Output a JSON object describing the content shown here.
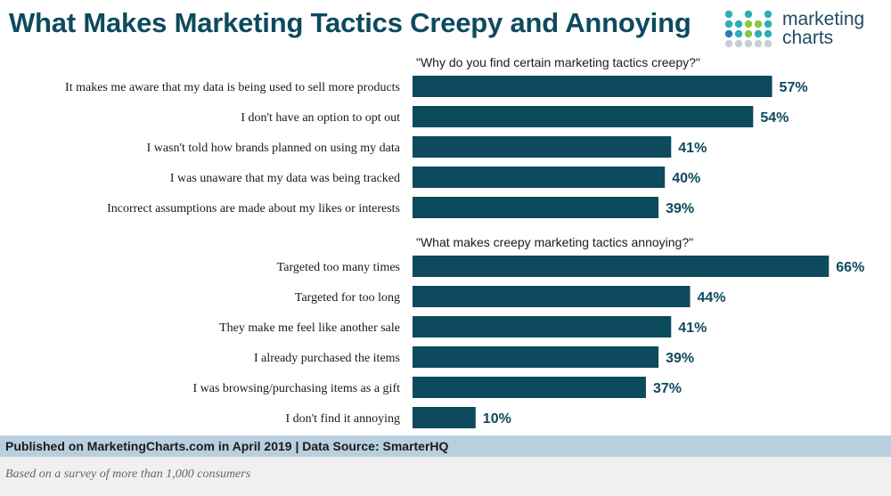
{
  "header": {
    "title": "What Makes Marketing Tactics Creepy and Annoying",
    "logo_line1": "marketing",
    "logo_line2": "charts"
  },
  "colors": {
    "bar": "#0d4a5e",
    "value_text": "#0d4a5e",
    "footer_band": "#b8d0de",
    "note_band": "#f0f0f0",
    "logo_teal": "#2ab0b5",
    "logo_green": "#8cc63f",
    "logo_blue": "#2b7bb9",
    "logo_gray": "#c4cfd6"
  },
  "chart_data": {
    "type": "bar",
    "orientation": "horizontal",
    "title": "What Makes Marketing Tactics Creepy and Annoying",
    "xlim": [
      0,
      70
    ],
    "unit": "%",
    "groups": [
      {
        "heading": "\"Why do you find certain marketing tactics creepy?\"",
        "categories": [
          "It makes me aware that my data is being used to sell more products",
          "I don't have an option to opt out",
          "I wasn't told how brands planned on using my data",
          "I was unaware that my data was being tracked",
          "Incorrect assumptions are made about my likes or interests"
        ],
        "values": [
          57,
          54,
          41,
          40,
          39
        ],
        "value_labels": [
          "57%",
          "54%",
          "41%",
          "40%",
          "39%"
        ]
      },
      {
        "heading": "\"What makes creepy marketing tactics annoying?\"",
        "categories": [
          "Targeted too many times",
          "Targeted for too long",
          "They make me feel like another sale",
          "I already purchased the items",
          "I was browsing/purchasing items as a gift",
          "I don't find it annoying"
        ],
        "values": [
          66,
          44,
          41,
          39,
          37,
          10
        ],
        "value_labels": [
          "66%",
          "44%",
          "41%",
          "39%",
          "37%",
          "10%"
        ]
      }
    ]
  },
  "footer": {
    "source": "Published on MarketingCharts.com in April 2019 | Data Source: SmarterHQ",
    "note": "Based on a survey of more than 1,000 consumers"
  }
}
